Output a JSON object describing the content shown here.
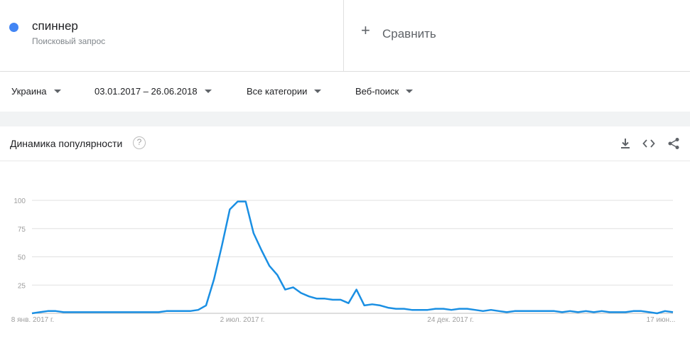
{
  "term": {
    "name": "спиннер",
    "subtitle": "Поисковый запрос",
    "color": "#4285f4"
  },
  "compare": {
    "icon": "plus-icon",
    "label": "Сравнить"
  },
  "filters": {
    "region": "Украина",
    "date_range": "03.01.2017 – 26.06.2018",
    "category": "Все категории",
    "search_type": "Веб-поиск"
  },
  "card": {
    "title": "Динамика популярности",
    "help_icon": "question-circle-icon",
    "actions": [
      "download-icon",
      "embed-code-icon",
      "share-icon"
    ]
  },
  "chart_data": {
    "type": "line",
    "x_ticks": [
      "8 янв. 2017 г.",
      "2 июл. 2017 г.",
      "24 дек. 2017 г.",
      "17 июн..."
    ],
    "y_ticks": [
      "100",
      "75",
      "50",
      "25"
    ],
    "ylim": [
      0,
      100
    ],
    "grid": true,
    "series": [
      {
        "color": "#1a8fe3",
        "values": [
          0,
          1,
          2,
          2,
          1,
          1,
          1,
          1,
          1,
          1,
          1,
          1,
          1,
          1,
          1,
          1,
          1,
          2,
          2,
          2,
          2,
          3,
          7,
          30,
          60,
          92,
          99,
          99,
          71,
          56,
          42,
          34,
          21,
          23,
          18,
          15,
          13,
          13,
          12,
          12,
          9,
          21,
          7,
          8,
          7,
          5,
          4,
          4,
          3,
          3,
          3,
          4,
          4,
          3,
          4,
          4,
          3,
          2,
          3,
          2,
          1,
          2,
          2,
          2,
          2,
          2,
          2,
          1,
          2,
          1,
          2,
          1,
          2,
          1,
          1,
          1,
          2,
          2,
          1,
          0,
          2,
          1
        ]
      }
    ]
  }
}
